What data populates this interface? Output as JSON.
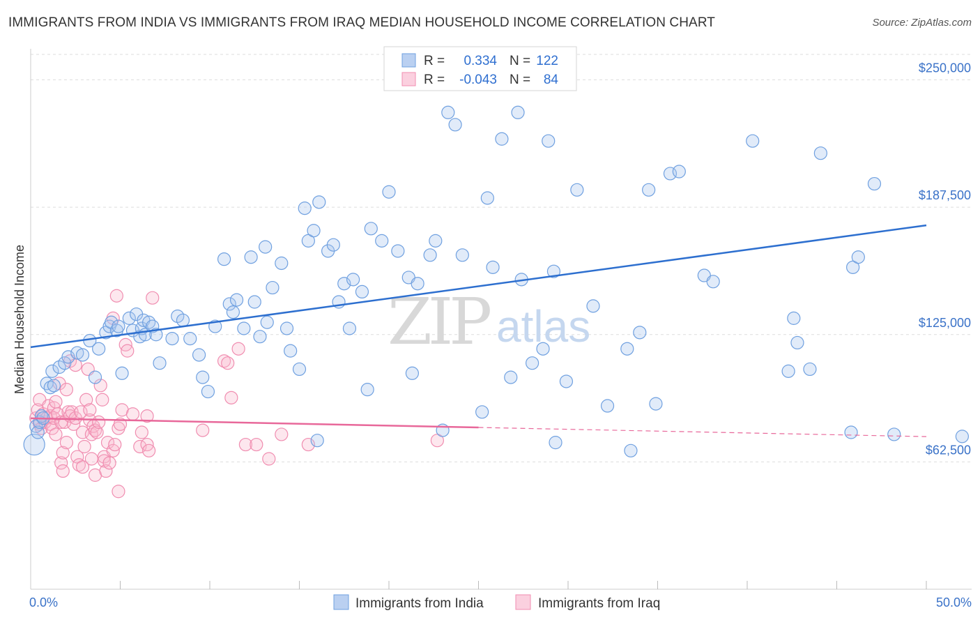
{
  "title": "IMMIGRANTS FROM INDIA VS IMMIGRANTS FROM IRAQ MEDIAN HOUSEHOLD INCOME CORRELATION CHART",
  "source": "Source: ZipAtlas.com",
  "watermark": {
    "zip": "ZIP",
    "atlas": "atlas"
  },
  "colors": {
    "india": "#6fa0e0",
    "india_line": "#2d6fcf",
    "iraq": "#f08db0",
    "iraq_line": "#e8689a",
    "axis_label": "#3a72c8"
  },
  "legend": {
    "india": {
      "r_label": "R =",
      "r_value": "0.334",
      "n_label": "N =",
      "n_value": "122"
    },
    "iraq": {
      "r_label": "R =",
      "r_value": "-0.043",
      "n_label": "N =",
      "n_value": "84"
    }
  },
  "chart_data": {
    "type": "scatter",
    "title": "IMMIGRANTS FROM INDIA VS IMMIGRANTS FROM IRAQ MEDIAN HOUSEHOLD INCOME CORRELATION CHART",
    "xlabel": "",
    "ylabel": "Median Household Income",
    "xlim": [
      0,
      50
    ],
    "ylim": [
      0,
      262500
    ],
    "x_tick_labels": [
      "0.0%",
      "50.0%"
    ],
    "y_ticks": [
      62500,
      125000,
      187500,
      250000
    ],
    "y_tick_labels": [
      "$62,500",
      "$125,000",
      "$187,500",
      "$250,000"
    ],
    "grid": true,
    "legend_position": "top-center",
    "series": [
      {
        "name": "Immigrants from India",
        "trend": {
          "x": [
            0,
            50
          ],
          "y": [
            118800,
            178600
          ]
        },
        "points": [
          [
            0.2,
            71000
          ],
          [
            0.3,
            80000
          ],
          [
            0.4,
            77000
          ],
          [
            0.5,
            82000
          ],
          [
            0.6,
            85000
          ],
          [
            0.7,
            84000
          ],
          [
            0.9,
            101000
          ],
          [
            1.1,
            99000
          ],
          [
            1.2,
            107000
          ],
          [
            1.3,
            100000
          ],
          [
            1.6,
            109000
          ],
          [
            1.9,
            111000
          ],
          [
            2.1,
            114000
          ],
          [
            2.6,
            116000
          ],
          [
            2.9,
            115000
          ],
          [
            3.3,
            122000
          ],
          [
            3.6,
            104000
          ],
          [
            3.8,
            118000
          ],
          [
            4.2,
            126000
          ],
          [
            4.4,
            129000
          ],
          [
            4.5,
            131000
          ],
          [
            4.8,
            127000
          ],
          [
            4.9,
            129000
          ],
          [
            5.1,
            106000
          ],
          [
            5.5,
            133000
          ],
          [
            5.7,
            127000
          ],
          [
            5.9,
            135000
          ],
          [
            6.1,
            124000
          ],
          [
            6.2,
            128000
          ],
          [
            6.3,
            132000
          ],
          [
            6.4,
            125000
          ],
          [
            6.6,
            131000
          ],
          [
            6.8,
            129000
          ],
          [
            7.0,
            125000
          ],
          [
            7.2,
            111000
          ],
          [
            7.9,
            123000
          ],
          [
            8.2,
            134000
          ],
          [
            8.5,
            132000
          ],
          [
            8.9,
            123000
          ],
          [
            9.4,
            115000
          ],
          [
            9.6,
            104000
          ],
          [
            9.9,
            97000
          ],
          [
            10.3,
            129000
          ],
          [
            10.8,
            162000
          ],
          [
            11.1,
            140000
          ],
          [
            11.3,
            136000
          ],
          [
            11.5,
            142000
          ],
          [
            11.9,
            128000
          ],
          [
            12.3,
            163000
          ],
          [
            12.5,
            141000
          ],
          [
            12.8,
            124000
          ],
          [
            13.1,
            168000
          ],
          [
            13.2,
            131000
          ],
          [
            13.5,
            148000
          ],
          [
            14.0,
            160000
          ],
          [
            14.3,
            128000
          ],
          [
            14.5,
            117000
          ],
          [
            15.0,
            108000
          ],
          [
            15.3,
            187000
          ],
          [
            15.5,
            171000
          ],
          [
            15.8,
            176000
          ],
          [
            16.1,
            190000
          ],
          [
            16.6,
            166000
          ],
          [
            16.9,
            169000
          ],
          [
            17.2,
            141000
          ],
          [
            17.5,
            150000
          ],
          [
            17.8,
            128000
          ],
          [
            18.0,
            152000
          ],
          [
            18.5,
            146000
          ],
          [
            18.8,
            98000
          ],
          [
            19.0,
            177000
          ],
          [
            19.6,
            171000
          ],
          [
            20.0,
            195000
          ],
          [
            20.5,
            166000
          ],
          [
            21.1,
            153000
          ],
          [
            21.3,
            106000
          ],
          [
            21.6,
            150000
          ],
          [
            22.3,
            164000
          ],
          [
            22.6,
            171000
          ],
          [
            23.0,
            78000
          ],
          [
            23.3,
            234000
          ],
          [
            23.7,
            228000
          ],
          [
            24.1,
            164000
          ],
          [
            25.2,
            87000
          ],
          [
            25.5,
            192000
          ],
          [
            25.8,
            158000
          ],
          [
            26.3,
            221000
          ],
          [
            26.8,
            104000
          ],
          [
            27.2,
            234000
          ],
          [
            27.4,
            152000
          ],
          [
            28.0,
            111000
          ],
          [
            28.6,
            118000
          ],
          [
            28.9,
            220000
          ],
          [
            29.2,
            156000
          ],
          [
            29.9,
            102000
          ],
          [
            30.5,
            196000
          ],
          [
            31.4,
            139000
          ],
          [
            32.2,
            90000
          ],
          [
            33.3,
            118000
          ],
          [
            34.0,
            126000
          ],
          [
            34.5,
            196000
          ],
          [
            34.9,
            91000
          ],
          [
            35.7,
            204000
          ],
          [
            36.2,
            205000
          ],
          [
            37.6,
            154000
          ],
          [
            38.1,
            151000
          ],
          [
            40.3,
            220000
          ],
          [
            42.3,
            107000
          ],
          [
            42.6,
            133000
          ],
          [
            42.8,
            121000
          ],
          [
            43.5,
            108000
          ],
          [
            44.1,
            214000
          ],
          [
            45.8,
            77000
          ],
          [
            45.9,
            158000
          ],
          [
            46.2,
            163000
          ],
          [
            47.1,
            199000
          ],
          [
            48.2,
            76000
          ],
          [
            52.0,
            75000
          ],
          [
            16.0,
            73000
          ],
          [
            29.3,
            72000
          ],
          [
            33.5,
            68000
          ]
        ]
      },
      {
        "name": "Immigrants from Iraq",
        "trend": {
          "x": [
            0,
            50
          ],
          "y": [
            83900,
            74900
          ],
          "solid_until_x": 25
        },
        "points": [
          [
            0.3,
            84000
          ],
          [
            0.4,
            88000
          ],
          [
            0.5,
            81000
          ],
          [
            0.5,
            93000
          ],
          [
            0.6,
            79000
          ],
          [
            0.7,
            86000
          ],
          [
            0.8,
            82000
          ],
          [
            0.9,
            84000
          ],
          [
            1.0,
            90000
          ],
          [
            1.1,
            85000
          ],
          [
            1.1,
            81000
          ],
          [
            1.2,
            79000
          ],
          [
            1.3,
            89000
          ],
          [
            1.3,
            84000
          ],
          [
            1.4,
            76000
          ],
          [
            1.4,
            92000
          ],
          [
            1.5,
            86000
          ],
          [
            1.6,
            101000
          ],
          [
            1.7,
            82000
          ],
          [
            1.7,
            62000
          ],
          [
            1.8,
            58000
          ],
          [
            1.8,
            67000
          ],
          [
            1.9,
            82000
          ],
          [
            2.0,
            72000
          ],
          [
            2.0,
            98000
          ],
          [
            2.1,
            87000
          ],
          [
            2.2,
            85000
          ],
          [
            2.2,
            112000
          ],
          [
            2.3,
            87000
          ],
          [
            2.4,
            81000
          ],
          [
            2.5,
            84000
          ],
          [
            2.6,
            65000
          ],
          [
            2.7,
            61000
          ],
          [
            2.8,
            87000
          ],
          [
            2.9,
            77000
          ],
          [
            2.9,
            60000
          ],
          [
            3.0,
            70000
          ],
          [
            3.1,
            93000
          ],
          [
            3.2,
            108000
          ],
          [
            3.3,
            83000
          ],
          [
            3.3,
            88000
          ],
          [
            3.4,
            76000
          ],
          [
            3.4,
            64000
          ],
          [
            3.5,
            80000
          ],
          [
            3.6,
            56000
          ],
          [
            3.6,
            78000
          ],
          [
            3.7,
            77000
          ],
          [
            3.8,
            82000
          ],
          [
            3.9,
            100000
          ],
          [
            4.0,
            93000
          ],
          [
            4.1,
            65000
          ],
          [
            4.1,
            63000
          ],
          [
            4.2,
            58000
          ],
          [
            4.3,
            72000
          ],
          [
            4.4,
            62000
          ],
          [
            4.6,
            133000
          ],
          [
            4.6,
            68000
          ],
          [
            4.7,
            71000
          ],
          [
            4.8,
            144000
          ],
          [
            4.9,
            79000
          ],
          [
            4.9,
            48000
          ],
          [
            5.0,
            81000
          ],
          [
            5.1,
            88000
          ],
          [
            5.3,
            120000
          ],
          [
            5.4,
            117000
          ],
          [
            5.7,
            86000
          ],
          [
            6.1,
            70000
          ],
          [
            6.2,
            77000
          ],
          [
            6.5,
            71000
          ],
          [
            6.5,
            85000
          ],
          [
            6.6,
            68000
          ],
          [
            6.8,
            143000
          ],
          [
            9.6,
            78000
          ],
          [
            10.8,
            112000
          ],
          [
            11.0,
            111000
          ],
          [
            11.2,
            94000
          ],
          [
            11.6,
            118000
          ],
          [
            12.0,
            71000
          ],
          [
            12.6,
            71000
          ],
          [
            13.3,
            64000
          ],
          [
            14.0,
            76000
          ],
          [
            15.5,
            71000
          ],
          [
            22.7,
            73000
          ],
          [
            2.5,
            110000
          ]
        ]
      }
    ]
  },
  "bottom_legend": {
    "india": "Immigrants from India",
    "iraq": "Immigrants from Iraq"
  },
  "x_axis": {
    "left_label": "0.0%",
    "right_label": "50.0%"
  }
}
